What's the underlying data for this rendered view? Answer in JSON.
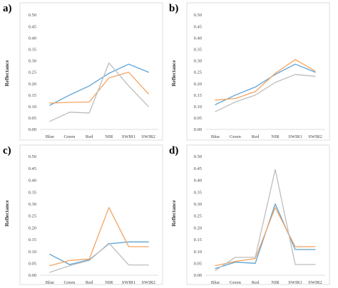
{
  "colors": {
    "blue": "#5ba3d6",
    "orange": "#f4a460",
    "gray": "#bdbdbd"
  },
  "chart_data": [
    {
      "panel": "a)",
      "type": "line",
      "categories": [
        "Blue",
        "Green",
        "Red",
        "NIR",
        "SWIR1",
        "SWIR2"
      ],
      "ylabel": "Reflectance",
      "ylim": [
        0,
        0.5
      ],
      "yticks": [
        "0.00",
        "0.05",
        "0.10",
        "0.15",
        "0.20",
        "0.25",
        "0.30",
        "0.35",
        "0.40",
        "0.45",
        "0.50"
      ],
      "grid": false,
      "series": [
        {
          "color": "blue",
          "values": [
            0.105,
            0.15,
            0.19,
            0.245,
            0.285,
            0.25
          ]
        },
        {
          "color": "orange",
          "values": [
            0.115,
            0.118,
            0.12,
            0.225,
            0.25,
            0.155
          ]
        },
        {
          "color": "gray",
          "values": [
            0.035,
            0.075,
            0.072,
            0.29,
            0.19,
            0.1
          ]
        }
      ]
    },
    {
      "panel": "b)",
      "type": "line",
      "categories": [
        "Blue",
        "Green",
        "Red",
        "NIR",
        "SWIR1",
        "SWIR2"
      ],
      "ylabel": "Reflectance",
      "ylim": [
        0,
        0.5
      ],
      "yticks": [
        "0.00",
        "0.05",
        "0.10",
        "0.15",
        "0.20",
        "0.25",
        "0.30",
        "0.35",
        "0.40",
        "0.45",
        "0.50"
      ],
      "grid": false,
      "series": [
        {
          "color": "blue",
          "values": [
            0.108,
            0.15,
            0.185,
            0.24,
            0.285,
            0.25
          ]
        },
        {
          "color": "orange",
          "values": [
            0.128,
            0.135,
            0.165,
            0.245,
            0.305,
            0.255
          ]
        },
        {
          "color": "gray",
          "values": [
            0.078,
            0.12,
            0.15,
            0.205,
            0.24,
            0.232
          ]
        }
      ]
    },
    {
      "panel": "c)",
      "type": "line",
      "categories": [
        "Blue",
        "Green",
        "Red",
        "NIR",
        "SWIR1",
        "SWIR2"
      ],
      "ylabel": "Reflectance",
      "ylim": [
        0,
        0.5
      ],
      "yticks": [
        "0.00",
        "0.05",
        "0.10",
        "0.15",
        "0.20",
        "0.25",
        "0.30",
        "0.35",
        "0.40",
        "0.45",
        "0.50"
      ],
      "grid": false,
      "series": [
        {
          "color": "blue",
          "values": [
            0.088,
            0.045,
            0.065,
            0.132,
            0.14,
            0.14
          ]
        },
        {
          "color": "orange",
          "values": [
            0.04,
            0.062,
            0.068,
            0.285,
            0.12,
            0.12
          ]
        },
        {
          "color": "gray",
          "values": [
            0.012,
            0.04,
            0.062,
            0.135,
            0.043,
            0.043
          ]
        }
      ]
    },
    {
      "panel": "d)",
      "type": "line",
      "categories": [
        "Blue",
        "Green",
        "Red",
        "NIR",
        "SWIR1",
        "SWIR2"
      ],
      "ylabel": "Reflectance",
      "ylim": [
        0,
        0.5
      ],
      "yticks": [
        "0.00",
        "0.05",
        "0.10",
        "0.15",
        "0.20",
        "0.25",
        "0.30",
        "0.35",
        "0.40",
        "0.45",
        "0.50"
      ],
      "grid": false,
      "series": [
        {
          "color": "blue",
          "values": [
            0.028,
            0.055,
            0.05,
            0.3,
            0.108,
            0.108
          ]
        },
        {
          "color": "orange",
          "values": [
            0.04,
            0.058,
            0.07,
            0.285,
            0.12,
            0.12
          ]
        },
        {
          "color": "gray",
          "values": [
            0.02,
            0.075,
            0.075,
            0.445,
            0.045,
            0.045
          ]
        }
      ]
    }
  ]
}
